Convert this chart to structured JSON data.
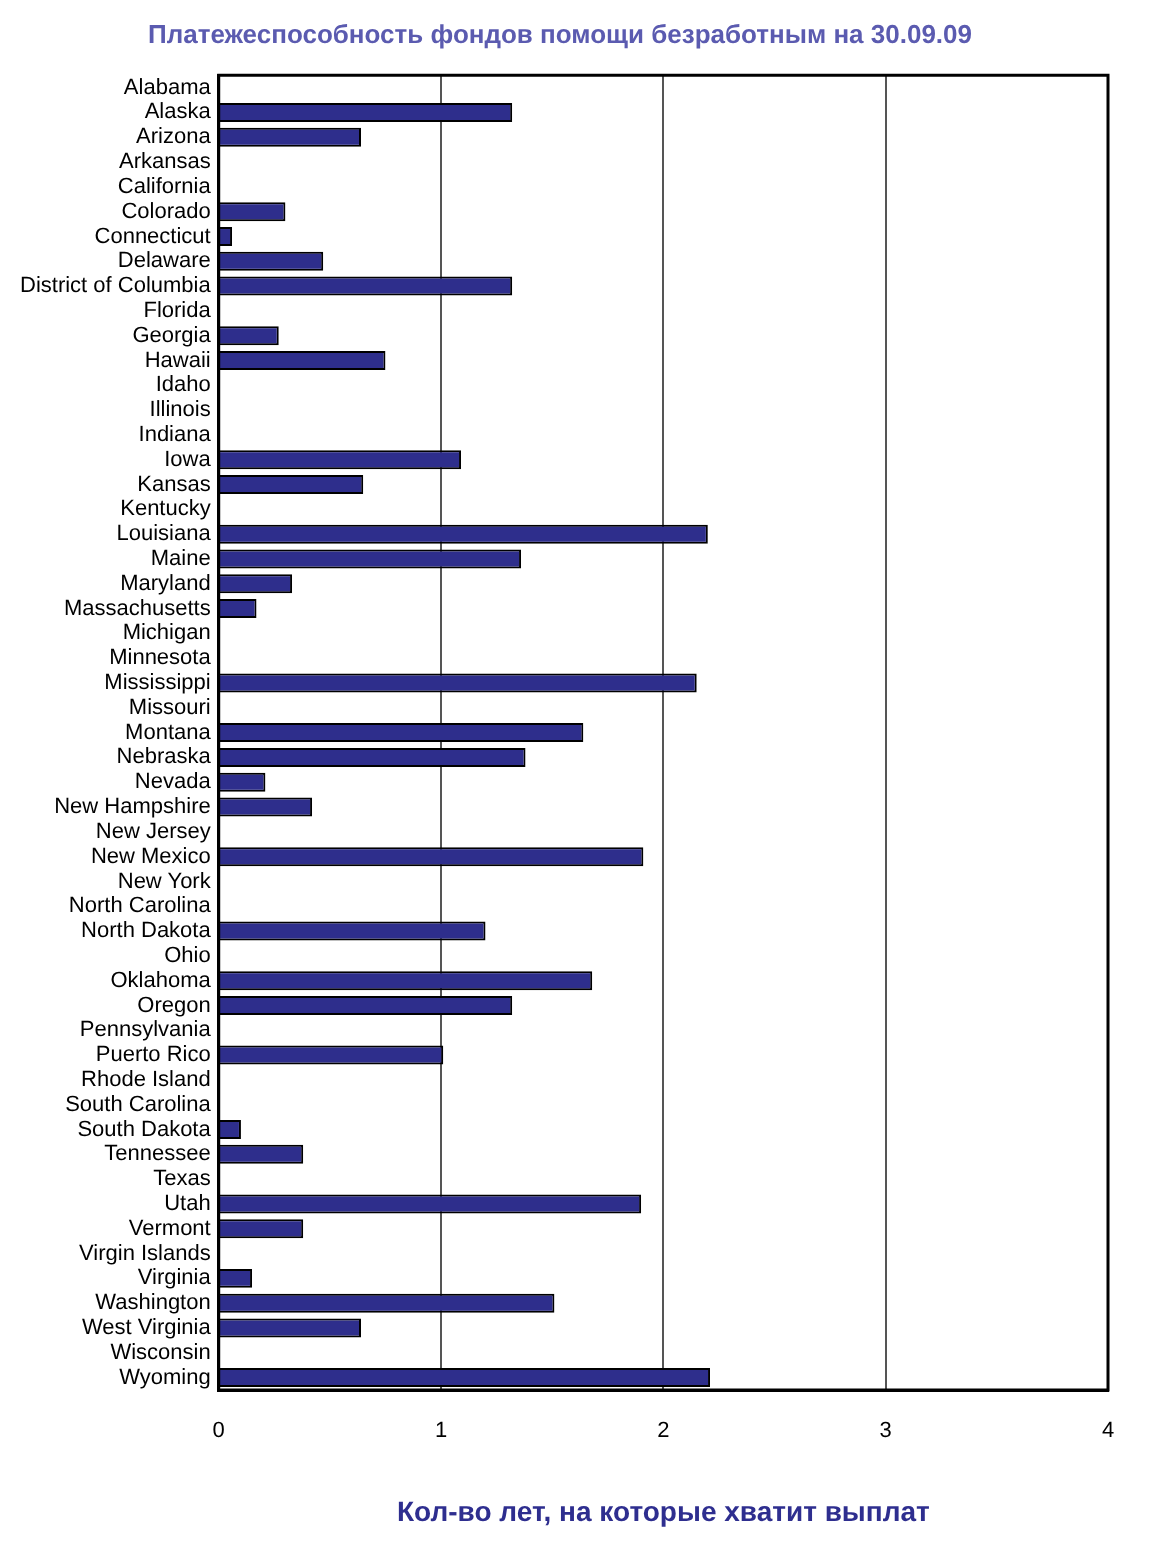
{
  "chart_data": {
    "type": "bar",
    "orientation": "horizontal",
    "title": "Платежеспособность фондов помощи безработным на 30.09.09",
    "xlabel": "Кол-во лет, на которые хватит выплат",
    "categories": [
      "Alabama",
      "Alaska",
      "Arizona",
      "Arkansas",
      "California",
      "Colorado",
      "Connecticut",
      "Delaware",
      "District of Columbia",
      "Florida",
      "Georgia",
      "Hawaii",
      "Idaho",
      "Illinois",
      "Indiana",
      "Iowa",
      "Kansas",
      "Kentucky",
      "Louisiana",
      "Maine",
      "Maryland",
      "Massachusetts",
      "Michigan",
      "Minnesota",
      "Mississippi",
      "Missouri",
      "Montana",
      "Nebraska",
      "Nevada",
      "New Hampshire",
      "New Jersey",
      "New Mexico",
      "New York",
      "North Carolina",
      "North Dakota",
      "Ohio",
      "Oklahoma",
      "Oregon",
      "Pennsylvania",
      "Puerto Rico",
      "Rhode Island",
      "South Carolina",
      "South Dakota",
      "Tennessee",
      "Texas",
      "Utah",
      "Vermont",
      "Virgin Islands",
      "Virginia",
      "Washington",
      "West Virginia",
      "Wisconsin",
      "Wyoming"
    ],
    "values": [
      0,
      1.32,
      0.64,
      0,
      0,
      0.3,
      0.06,
      0.47,
      1.32,
      0,
      0.27,
      0.75,
      0,
      0,
      0,
      1.09,
      0.65,
      0,
      2.2,
      1.36,
      0.33,
      0.17,
      0,
      0,
      2.15,
      0,
      1.64,
      1.38,
      0.21,
      0.42,
      0,
      1.91,
      0,
      0,
      1.2,
      0,
      1.68,
      1.32,
      0,
      1.01,
      0,
      0,
      0.1,
      0.38,
      0,
      1.9,
      0.38,
      0,
      0.15,
      1.51,
      0.64,
      0,
      2.21
    ],
    "color": "#2e2e8c",
    "xlim": [
      0,
      4
    ],
    "xticks": [
      0,
      1,
      2,
      3,
      4
    ],
    "grid": "x",
    "legend": false
  }
}
